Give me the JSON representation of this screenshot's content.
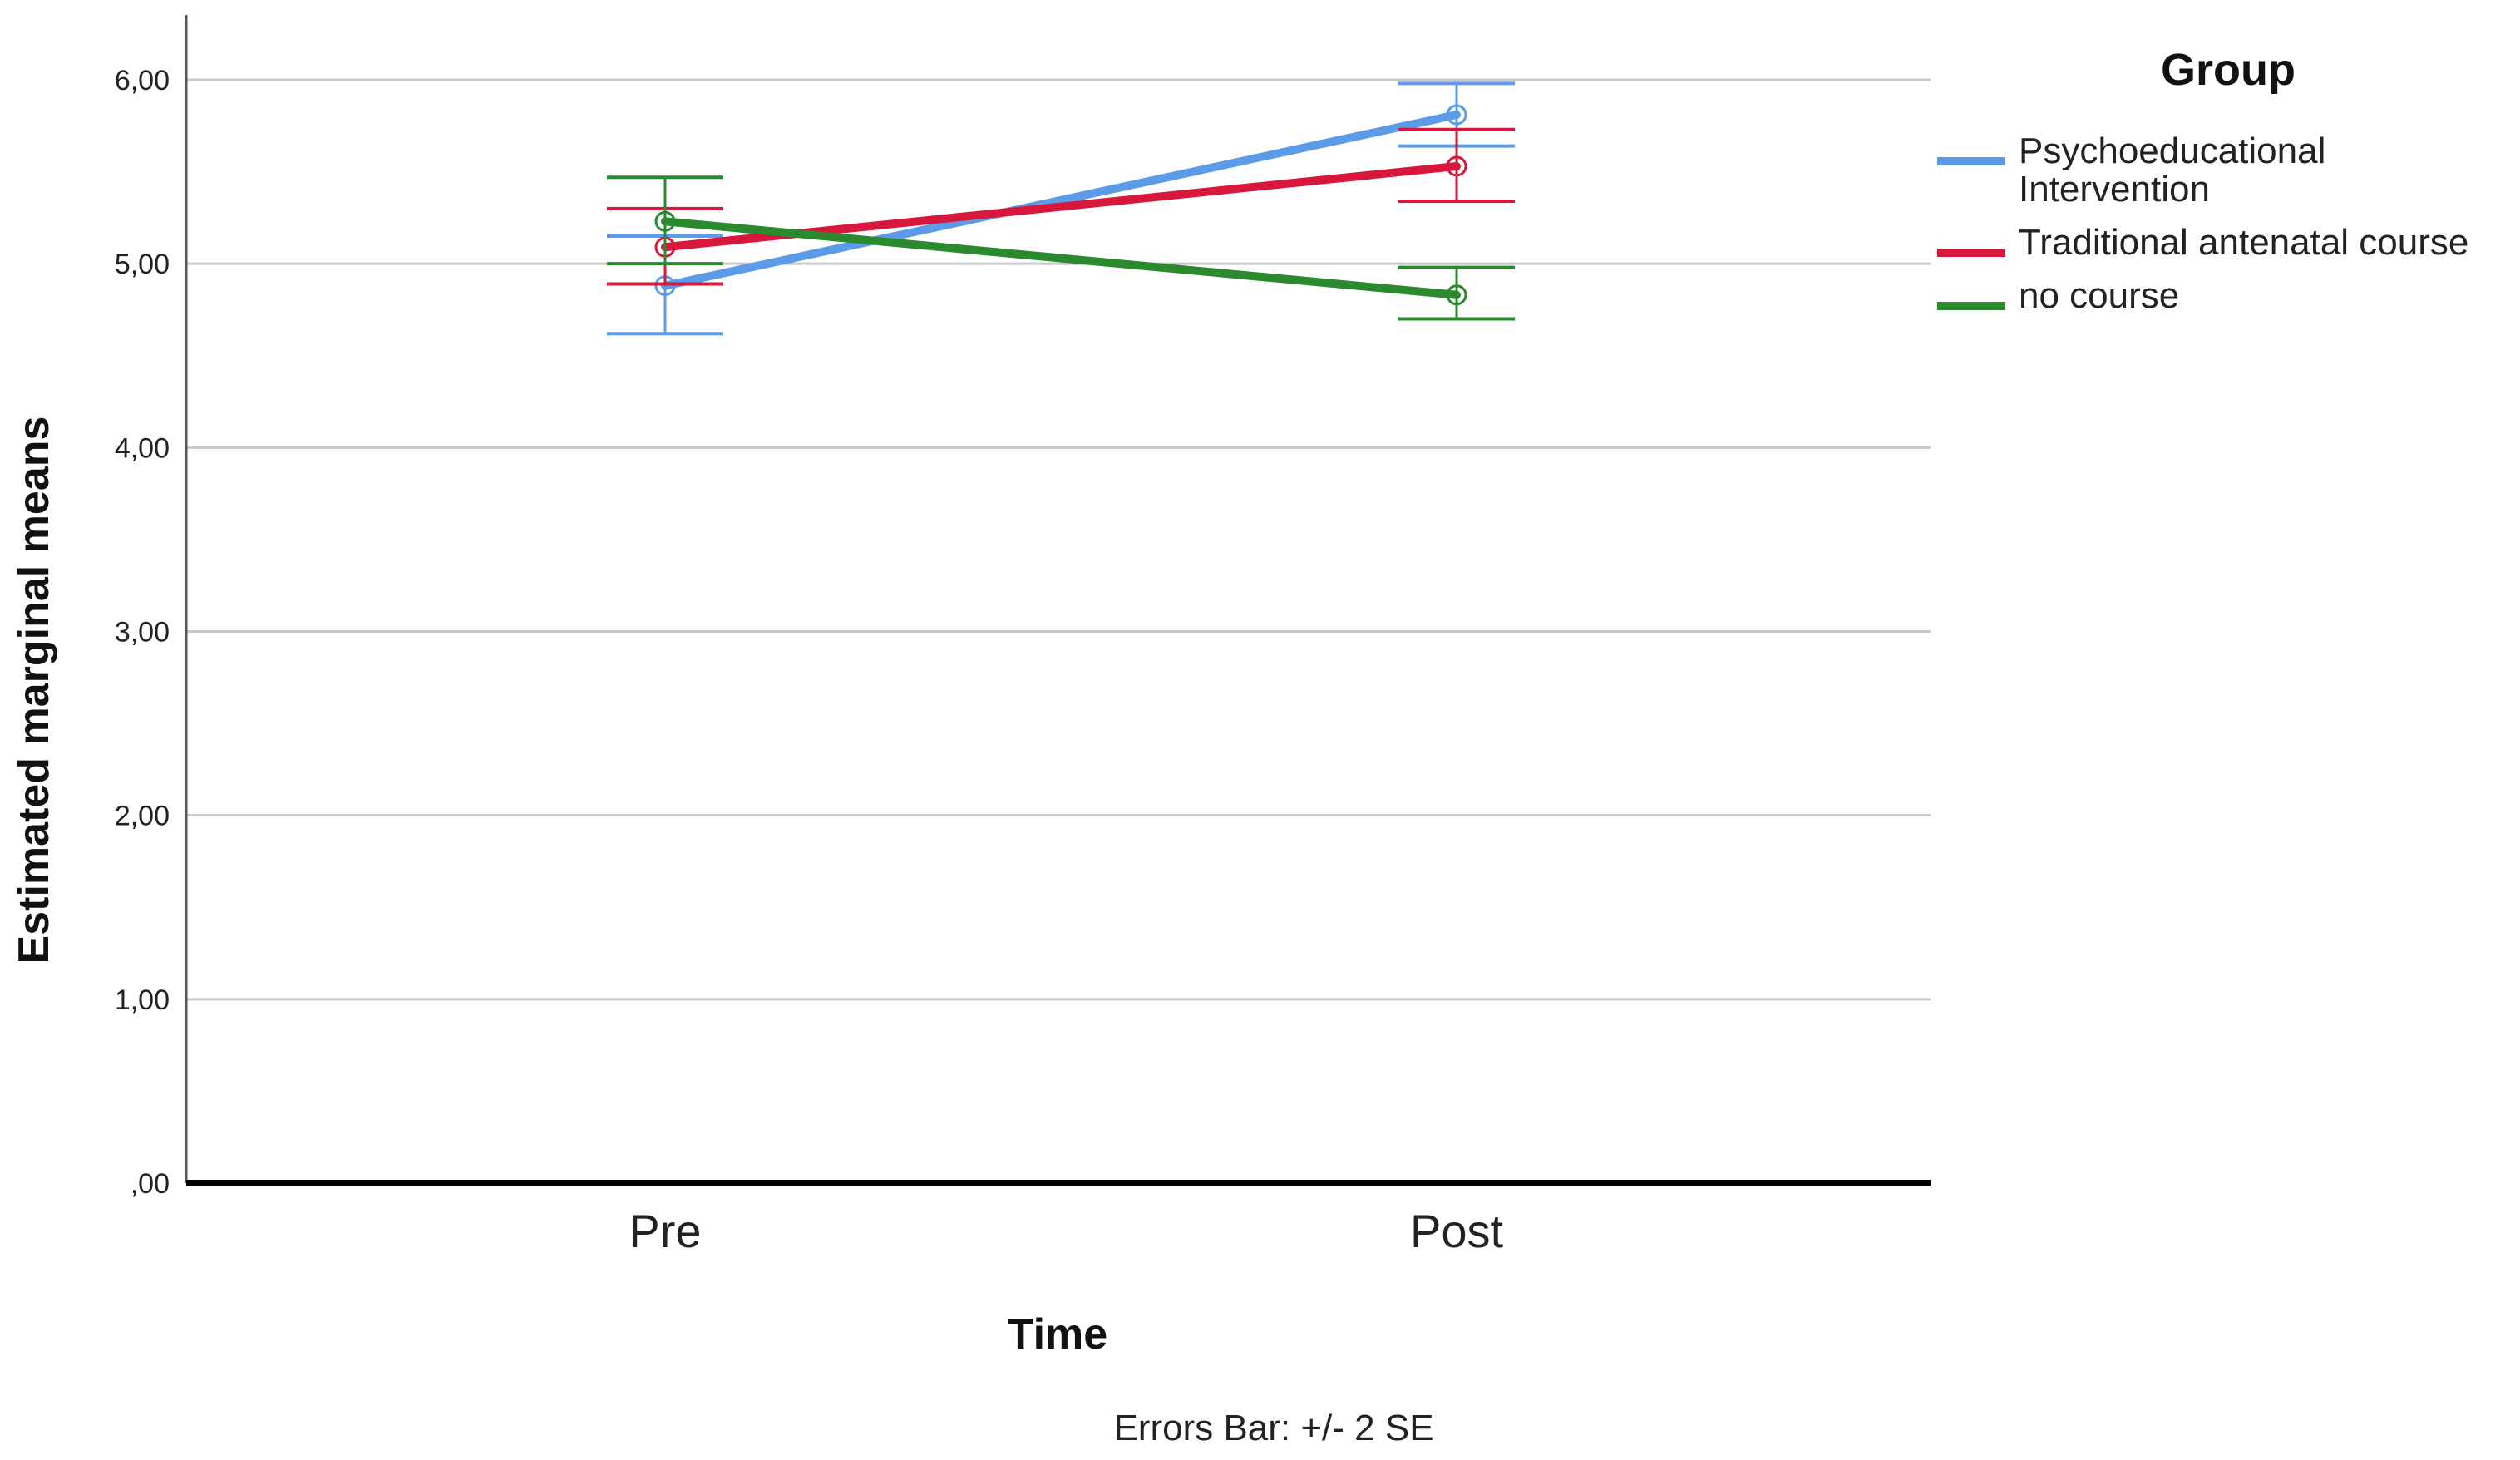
{
  "chart_data": {
    "type": "line",
    "title": "",
    "xlabel": "Time",
    "ylabel": "Estimated marginal means",
    "categories": [
      "Pre",
      "Post"
    ],
    "ylim": [
      0,
      6
    ],
    "yticks": [
      0,
      1,
      2,
      3,
      4,
      5,
      6
    ],
    "ytick_labels": [
      ",00",
      "1,00",
      "2,00",
      "3,00",
      "4,00",
      "5,00",
      "6,00"
    ],
    "grid": true,
    "legend": {
      "title": "Group",
      "placement": "top-right"
    },
    "series": [
      {
        "name": "Psychoeducational Intervention",
        "name_lines": [
          "Psychoeducational",
          "Intervention"
        ],
        "color": "#5B9BE8",
        "values": [
          4.88,
          5.81
        ],
        "error_low": [
          4.62,
          5.64
        ],
        "error_high": [
          5.15,
          5.98
        ]
      },
      {
        "name": "Traditional antenatal course",
        "name_lines": [
          "Traditional antenatal course"
        ],
        "color": "#D8173D",
        "values": [
          5.09,
          5.53
        ],
        "error_low": [
          4.89,
          5.34
        ],
        "error_high": [
          5.3,
          5.73
        ]
      },
      {
        "name": "no course",
        "name_lines": [
          "no course"
        ],
        "color": "#2B8A2E",
        "values": [
          5.23,
          4.83
        ],
        "error_low": [
          5.0,
          4.7
        ],
        "error_high": [
          5.47,
          4.98
        ]
      }
    ],
    "annotation": "Errors Bar: +/- 2 SE"
  }
}
